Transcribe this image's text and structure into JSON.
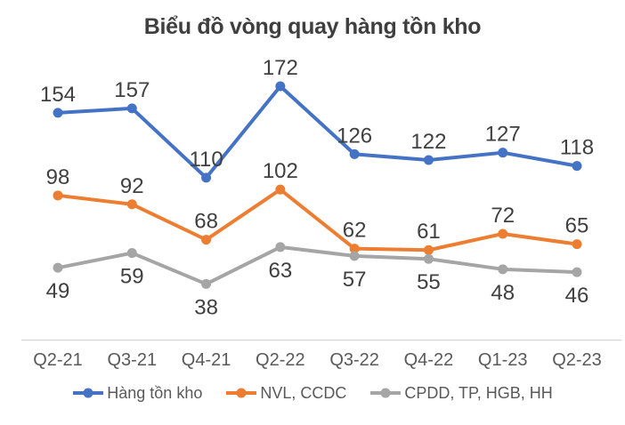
{
  "chart_data": {
    "type": "line",
    "title": "Biểu đồ vòng quay hàng tồn kho",
    "categories": [
      "Q2-21",
      "Q3-21",
      "Q4-21",
      "Q2-22",
      "Q3-22",
      "Q4-22",
      "Q1-23",
      "Q2-23"
    ],
    "series": [
      {
        "name": "Hàng tồn kho",
        "color": "#4472C4",
        "values": [
          154,
          157,
          110,
          172,
          126,
          122,
          127,
          118
        ],
        "label_position": "above"
      },
      {
        "name": "NVL, CCDC",
        "color": "#ED7D31",
        "values": [
          98,
          92,
          68,
          102,
          62,
          61,
          72,
          65
        ],
        "label_position": "above"
      },
      {
        "name": "CPDD, TP, HGB, HH",
        "color": "#A5A5A5",
        "values": [
          49,
          59,
          38,
          63,
          57,
          55,
          48,
          46
        ],
        "label_position": "below"
      }
    ],
    "ylim": [
      0,
      190
    ],
    "grid": false,
    "y_axis_visible": false,
    "data_labels": true,
    "legend_position": "bottom"
  },
  "colors": {
    "title": "#3f3f3f",
    "data_label": "#404040",
    "axis_label": "#595959",
    "legend_label": "#595959",
    "axis_line": "#d9d9d9",
    "background": "#ffffff"
  }
}
